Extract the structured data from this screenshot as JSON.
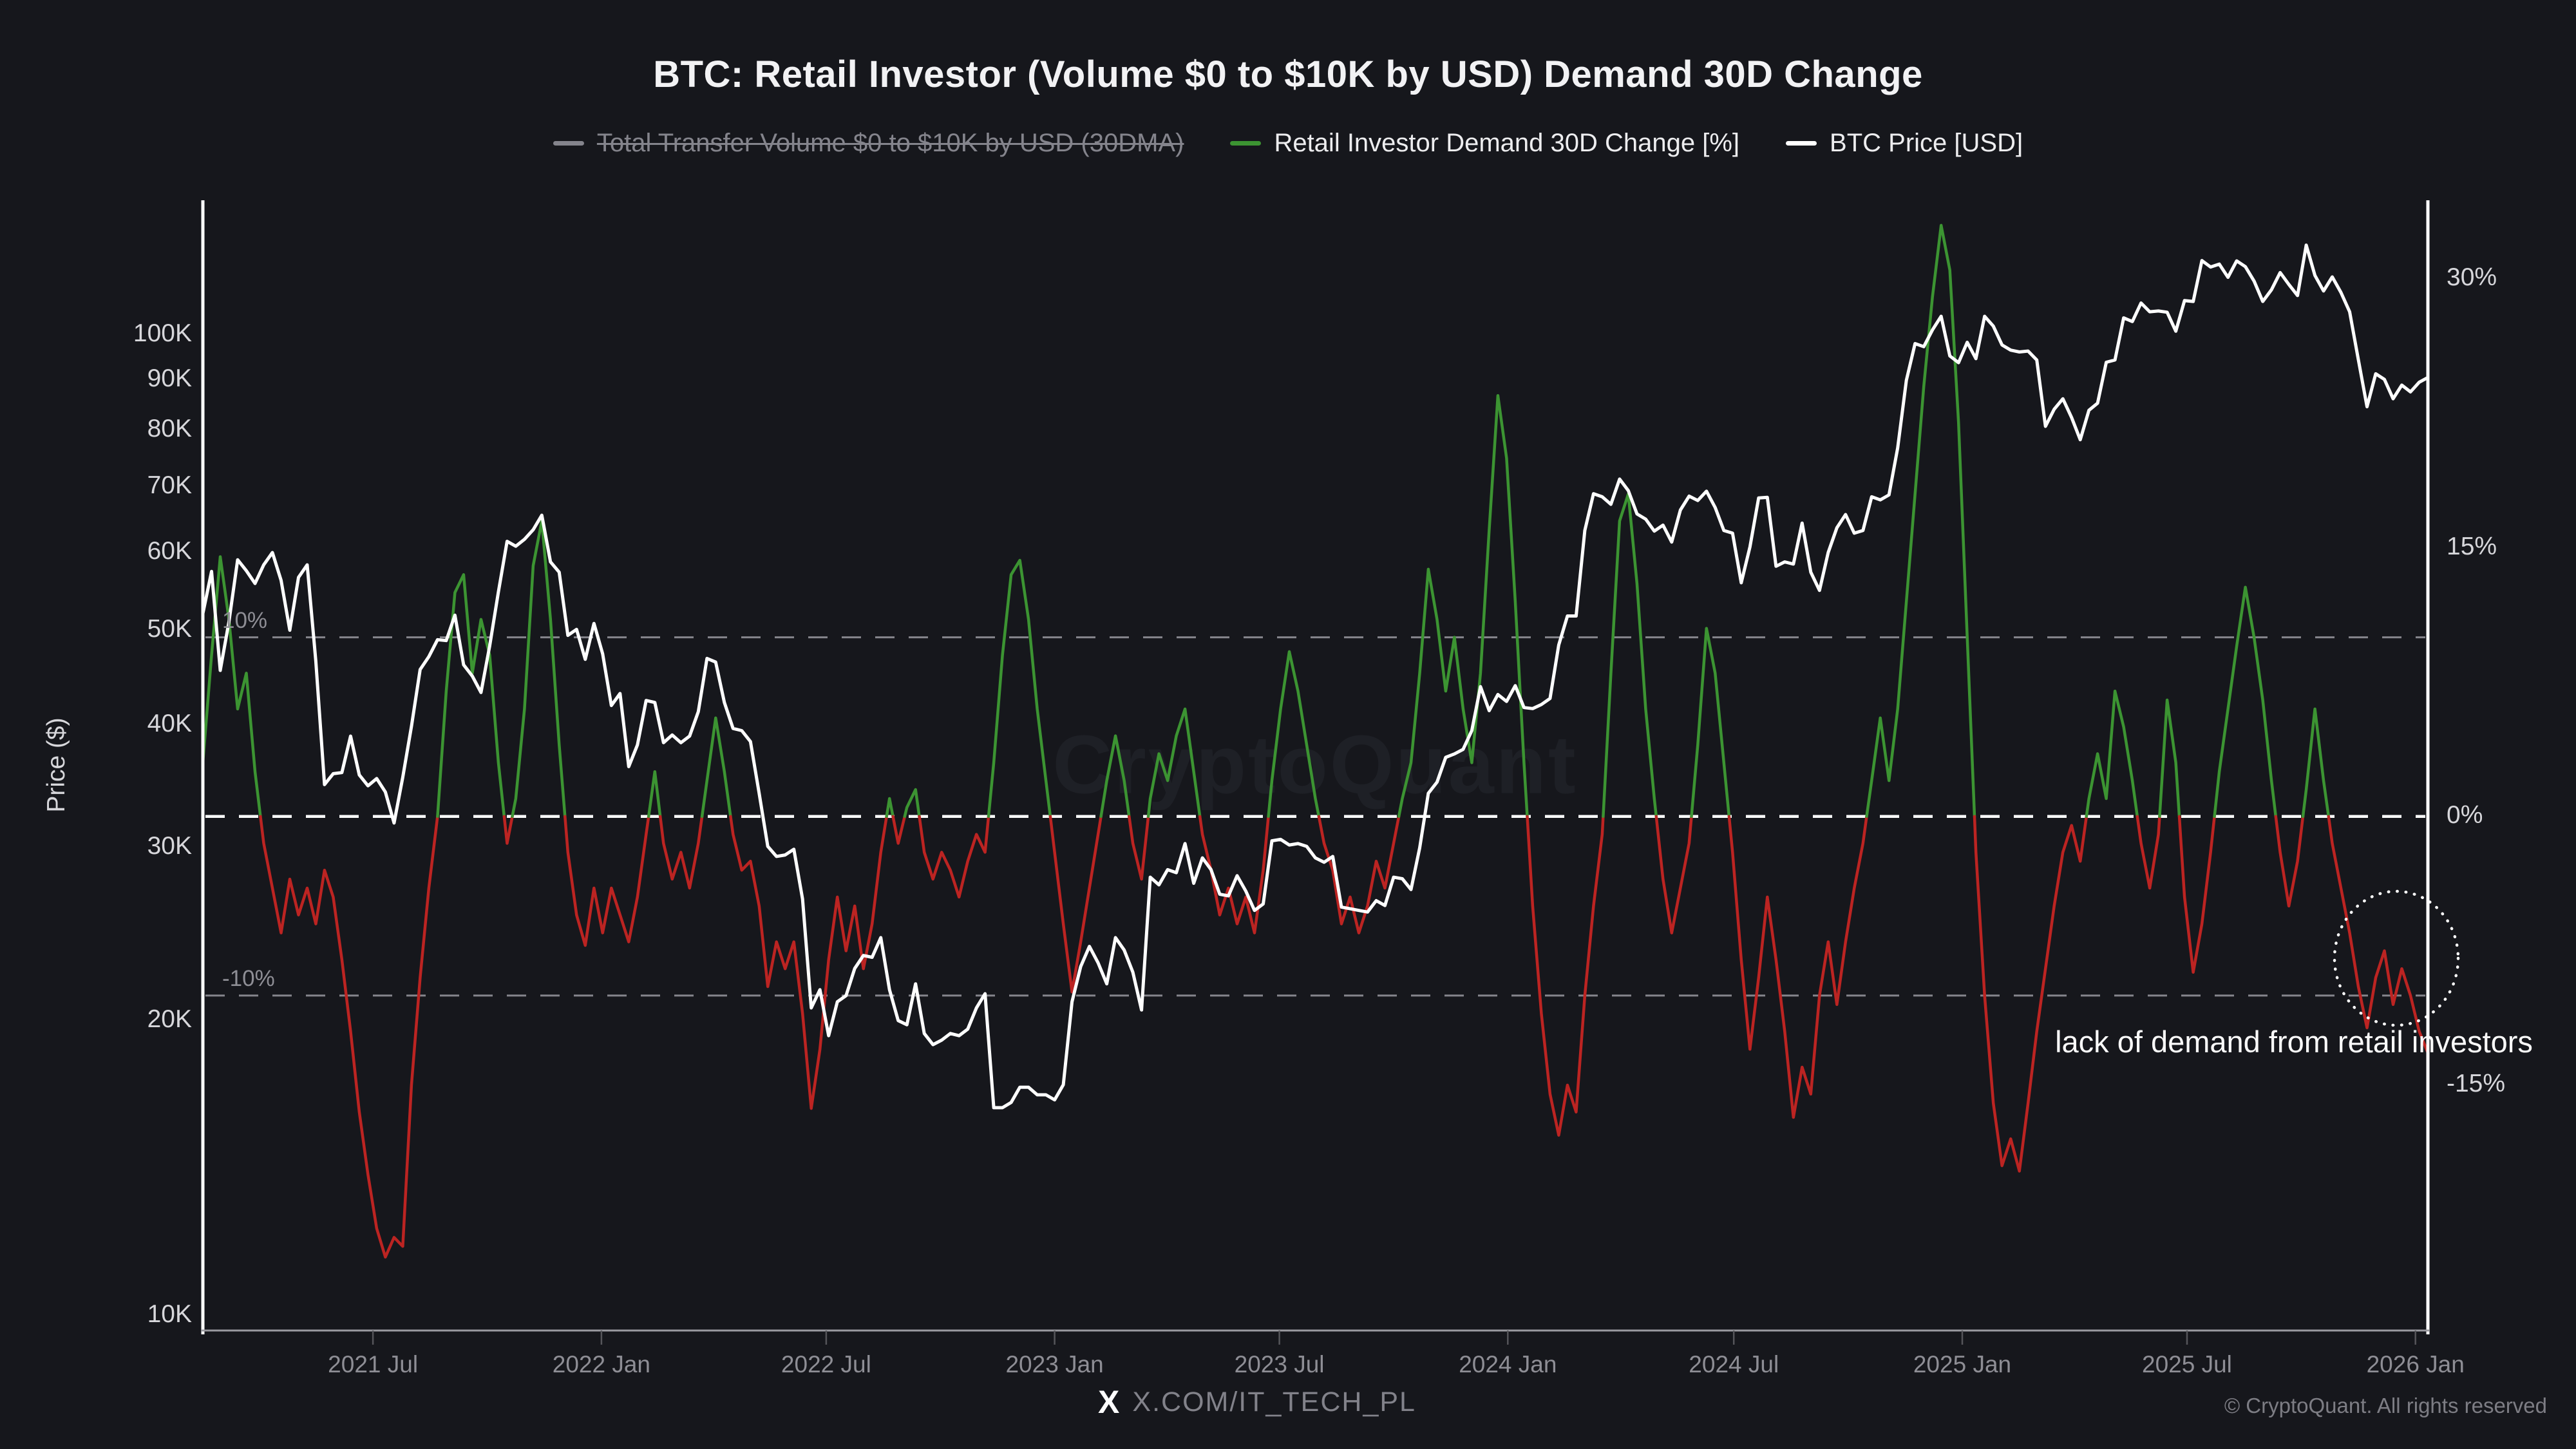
{
  "title": "BTC: Retail Investor (Volume $0 to $10K by USD) Demand 30D Change",
  "legend": {
    "items": [
      {
        "label": "Total Transfer Volume $0 to $10K by USD (30DMA)",
        "marker_color": "#84848c",
        "disabled": true
      },
      {
        "label": "Retail Investor Demand 30D Change [%]",
        "marker_color": "#3c9432",
        "disabled": false
      },
      {
        "label": "BTC Price [USD]",
        "marker_color": "#ffffff",
        "disabled": false
      }
    ]
  },
  "axes": {
    "left": {
      "title": "Price ($)",
      "scale": "log",
      "ticks": [
        {
          "value": 100,
          "label": "100K"
        },
        {
          "value": 90,
          "label": "90K"
        },
        {
          "value": 80,
          "label": "80K"
        },
        {
          "value": 70,
          "label": "70K"
        },
        {
          "value": 60,
          "label": "60K"
        },
        {
          "value": 50,
          "label": "50K"
        },
        {
          "value": 40,
          "label": "40K"
        },
        {
          "value": 30,
          "label": "30K"
        },
        {
          "value": 20,
          "label": "20K"
        },
        {
          "value": 10,
          "label": "10K"
        }
      ]
    },
    "right": {
      "ticks": [
        {
          "value": 30,
          "label": "30%"
        },
        {
          "value": 15,
          "label": "15%"
        },
        {
          "value": 0,
          "label": "0%"
        },
        {
          "value": -15,
          "label": "-15%"
        }
      ]
    },
    "x": {
      "ticks": [
        {
          "date": "2021-07-01",
          "label": "2021 Jul"
        },
        {
          "date": "2022-01-01",
          "label": "2022 Jan"
        },
        {
          "date": "2022-07-01",
          "label": "2022 Jul"
        },
        {
          "date": "2023-01-01",
          "label": "2023 Jan"
        },
        {
          "date": "2023-07-01",
          "label": "2023 Jul"
        },
        {
          "date": "2024-01-01",
          "label": "2024 Jan"
        },
        {
          "date": "2024-07-01",
          "label": "2024 Jul"
        },
        {
          "date": "2025-01-01",
          "label": "2025 Jan"
        },
        {
          "date": "2025-07-01",
          "label": "2025 Jul"
        },
        {
          "date": "2026-01-01",
          "label": "2026 Jan"
        }
      ]
    }
  },
  "reference_lines": [
    {
      "value": 10,
      "label": "10%",
      "color": "#85858c",
      "width": 3
    },
    {
      "value": 0,
      "label": "",
      "color": "#ffffff",
      "width": 4.5
    },
    {
      "value": -10,
      "label": "-10%",
      "color": "#85858c",
      "width": 3
    }
  ],
  "annotation": {
    "text": "lack of demand from retail investors"
  },
  "watermark": "CryptoQuant",
  "footer": {
    "x_logo": "X",
    "handle": "X.COM/IT_TECH_PL",
    "copyright": "© CryptoQuant. All rights reserved"
  },
  "colors": {
    "background": "#16171c",
    "price_line": "#ffffff",
    "demand_positive": "#3c9432",
    "demand_negative": "#bc2422",
    "axis_line": "#ffffff",
    "bottom_axis_line": "#9a9aa0",
    "grid_dashed": "#85858c",
    "zero_dashed": "#ffffff",
    "tick_text": "#d7d7db",
    "x_tick_text": "#8e8e95",
    "muted_text": "#82828a"
  },
  "chart_data": {
    "type": "line",
    "title": "BTC: Retail Investor (Volume $0 to $10K by USD) Demand 30D Change",
    "start_date": "2021-02-14",
    "interval_days": 7,
    "x_range": {
      "start": "2021-02-14",
      "end": "2026-01-10"
    },
    "y_left": {
      "label": "Price ($)",
      "scale": "log",
      "min_k": 9.66,
      "max_k": 137.2
    },
    "y_right": {
      "label": "Demand 30D Change",
      "min_pct": -28.7,
      "max_pct": 34.4
    },
    "grid": "dashed horizontal at 10%, 0%, -10%",
    "legend_position": "top",
    "series": [
      {
        "name": "BTC Price [USD]",
        "unit": "thousand USD",
        "color": "#ffffff",
        "values": [
          52,
          57.4,
          45.5,
          51,
          59,
          57.5,
          55.8,
          58.3,
          60,
          56.2,
          50,
          56.6,
          58.3,
          46.5,
          34.8,
          35.7,
          35.8,
          39,
          35.6,
          34.7,
          35.3,
          34.2,
          31.8,
          35.4,
          39.9,
          45.6,
          47,
          48.9,
          48.8,
          51.8,
          46.1,
          44.9,
          43.2,
          48.2,
          54.7,
          61.6,
          60.9,
          61.9,
          63.3,
          65.5,
          58.7,
          57.3,
          49.4,
          50.1,
          46.7,
          50.8,
          47.3,
          41.9,
          43.1,
          36.3,
          38.2,
          42.4,
          42.2,
          38.4,
          39.1,
          38.4,
          39,
          41.3,
          46.8,
          46.4,
          42.2,
          39.7,
          39.5,
          38.5,
          34.1,
          30.1,
          29.4,
          29.5,
          29.9,
          26.6,
          20.6,
          21.5,
          19.3,
          20.9,
          21.2,
          22.6,
          23.3,
          23.2,
          24.3,
          21.5,
          20,
          19.8,
          21.8,
          19.4,
          18.9,
          19.1,
          19.4,
          19.3,
          19.6,
          20.6,
          21.3,
          16.3,
          16.3,
          16.5,
          17.1,
          17.1,
          16.8,
          16.8,
          16.6,
          17.2,
          20.9,
          22.7,
          23.8,
          22.9,
          21.8,
          24.3,
          23.6,
          22.4,
          20.5,
          28,
          27.5,
          28.5,
          28.3,
          30.3,
          27.6,
          29.3,
          28.5,
          26.9,
          26.8,
          28.1,
          27.1,
          25.9,
          26.3,
          30.5,
          30.6,
          30.2,
          30.3,
          30.1,
          29.3,
          29,
          29.4,
          26.1,
          26,
          25.9,
          25.8,
          26.5,
          26.2,
          28,
          27.9,
          27.2,
          30,
          34.1,
          35,
          37.1,
          37.4,
          37.8,
          39.5,
          43.8,
          41.4,
          43,
          42.3,
          43.9,
          41.7,
          41.6,
          42,
          42.6,
          48.3,
          51.7,
          51.7,
          63.2,
          68.9,
          68.4,
          67.2,
          71.3,
          69.4,
          65.7,
          64.9,
          63.1,
          64,
          61.5,
          66.3,
          68.5,
          67.8,
          69.3,
          66.7,
          63.2,
          62.8,
          55.9,
          60.8,
          68.2,
          68.3,
          58.1,
          58.7,
          58.4,
          64.3,
          57.3,
          54.9,
          60,
          63.6,
          65.6,
          62.8,
          63.2,
          68.4,
          67.9,
          68.7,
          76.7,
          89.9,
          98,
          97.3,
          101.2,
          104.5,
          95.2,
          93.7,
          98.3,
          94.6,
          104.5,
          102.1,
          97.7,
          96.5,
          96.1,
          96.3,
          94.3,
          80.7,
          84,
          86.1,
          82.4,
          78.2,
          83.8,
          85.2,
          93.8,
          94.3,
          104.1,
          103.2,
          107.8,
          105.6,
          105.8,
          105.5,
          100.9,
          108.4,
          108.2,
          119.1,
          117.3,
          118.1,
          114.5,
          119,
          117.4,
          113.5,
          108.2,
          111.2,
          115.8,
          112.6,
          109.7,
          123.5,
          115,
          110.9,
          114.6,
          110.5,
          105.6,
          94.4,
          84.5,
          91.3,
          90.1,
          86.1,
          88.9,
          87.5,
          89.5,
          90.5
        ]
      },
      {
        "name": "Retail Investor Demand 30D Change [%]",
        "unit": "%",
        "color_positive": "#3c9432",
        "color_negative": "#bc2422",
        "values": [
          3,
          9,
          14.5,
          11,
          6,
          8,
          2.5,
          -1.5,
          -4,
          -6.5,
          -3.5,
          -5.5,
          -4,
          -6,
          -3,
          -4.5,
          -8,
          -12,
          -16.5,
          -20,
          -23,
          -24.6,
          -23.5,
          -24,
          -15,
          -9,
          -4,
          0,
          7,
          12.5,
          13.5,
          8,
          11,
          9,
          3,
          -1.5,
          1,
          6,
          14,
          16.5,
          11,
          4,
          -2,
          -5.5,
          -7.2,
          -4,
          -6.5,
          -4,
          -5.5,
          -7,
          -4.5,
          -1,
          2.5,
          -1.5,
          -3.5,
          -2,
          -4,
          -1.5,
          2,
          5.5,
          2.5,
          -1,
          -3,
          -2.5,
          -5,
          -9.5,
          -7,
          -8.5,
          -7,
          -11,
          -16.3,
          -13,
          -8,
          -4.5,
          -7.5,
          -5,
          -8.5,
          -6,
          -2,
          1,
          -1.5,
          0.5,
          1.5,
          -2,
          -3.5,
          -2,
          -3,
          -4.5,
          -2.5,
          -1,
          -2,
          3,
          9,
          13.5,
          14.3,
          11,
          6,
          2,
          -2,
          -6,
          -9.8,
          -7,
          -4,
          -1,
          2,
          4.5,
          2,
          -1.5,
          -3.5,
          1,
          3.5,
          2,
          4.5,
          6,
          2.5,
          -1,
          -3,
          -5.5,
          -4,
          -6,
          -4.5,
          -6.5,
          -3,
          2,
          6,
          9.2,
          7,
          4,
          1,
          -1.5,
          -3,
          -6,
          -4.5,
          -6.5,
          -5,
          -2.5,
          -4,
          -1.5,
          1,
          3,
          8,
          13.8,
          11,
          7,
          10,
          6,
          3,
          8,
          16,
          23.5,
          20,
          12,
          3,
          -5,
          -11,
          -15.5,
          -17.8,
          -15,
          -16.5,
          -10,
          -5,
          -1,
          8,
          16.5,
          18,
          13,
          6,
          1,
          -3.5,
          -6.5,
          -4,
          -1.5,
          4,
          10.5,
          8,
          3,
          -2,
          -8,
          -13,
          -9,
          -4.5,
          -8,
          -12,
          -16.8,
          -14,
          -15.5,
          -10,
          -7,
          -10.5,
          -7,
          -4,
          -1.5,
          2,
          5.5,
          2,
          6,
          12,
          18,
          24,
          29,
          33,
          30.5,
          22,
          10,
          -2,
          -10,
          -16,
          -19.5,
          -18,
          -19.8,
          -16,
          -12,
          -8.5,
          -5,
          -2,
          -0.5,
          -2.5,
          1,
          3.5,
          1,
          7,
          5,
          2,
          -1.5,
          -4,
          -1,
          6.5,
          3,
          -4.5,
          -8.7,
          -6,
          -2,
          2.5,
          6,
          9.5,
          12.8,
          10,
          6.5,
          2,
          -2,
          -5,
          -2.5,
          1.5,
          6,
          2,
          -1.5,
          -4,
          -6.5,
          -9.5,
          -11.8,
          -9,
          -7.5,
          -10.5,
          -8.5,
          -10,
          -12,
          -13.2
        ]
      }
    ]
  }
}
